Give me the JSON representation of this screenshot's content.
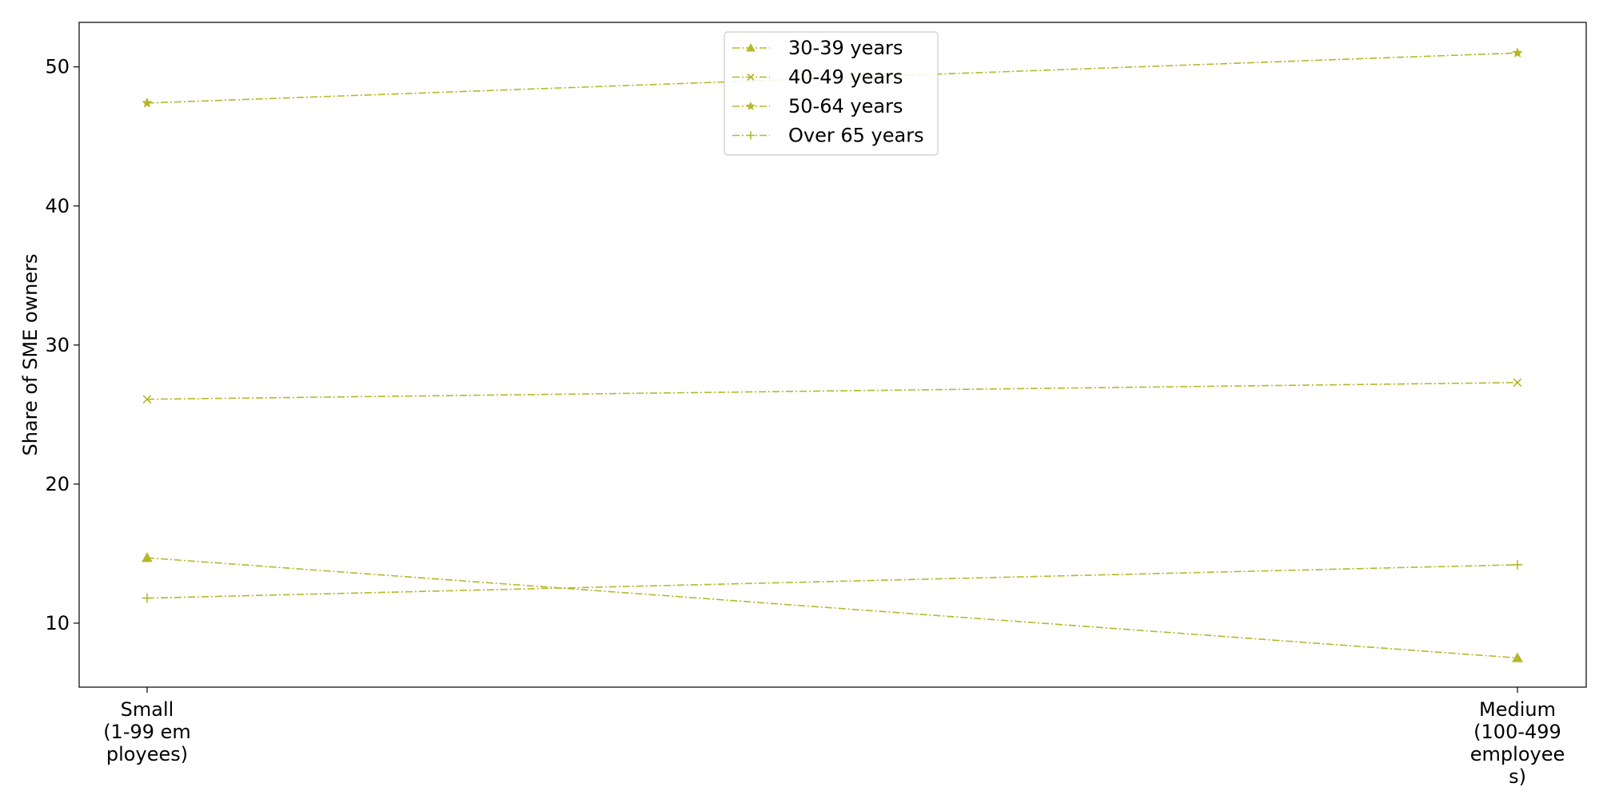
{
  "chart_data": {
    "type": "line",
    "title": "",
    "xlabel": "",
    "ylabel": "Share of SME owners",
    "categories": [
      [
        "Small",
        "(1-99 em",
        "ployees)"
      ],
      [
        "Medium",
        "(100-499",
        "employee",
        "s)"
      ]
    ],
    "ylim": [
      5.4,
      53.2
    ],
    "yticks": [
      10,
      20,
      30,
      40,
      50
    ],
    "grid": false,
    "legend_position": "top-center",
    "series": [
      {
        "name": "30-39 years",
        "values": [
          14.7,
          7.5
        ],
        "marker": "triangle",
        "color": "#b5b82a"
      },
      {
        "name": "40-49 years",
        "values": [
          26.1,
          27.3
        ],
        "marker": "x",
        "color": "#b5b82a"
      },
      {
        "name": "50-64 years",
        "values": [
          47.4,
          51.0
        ],
        "marker": "star",
        "color": "#b5b82a"
      },
      {
        "name": "Over 65 years",
        "values": [
          11.8,
          14.2
        ],
        "marker": "plus",
        "color": "#b5b82a"
      }
    ]
  }
}
